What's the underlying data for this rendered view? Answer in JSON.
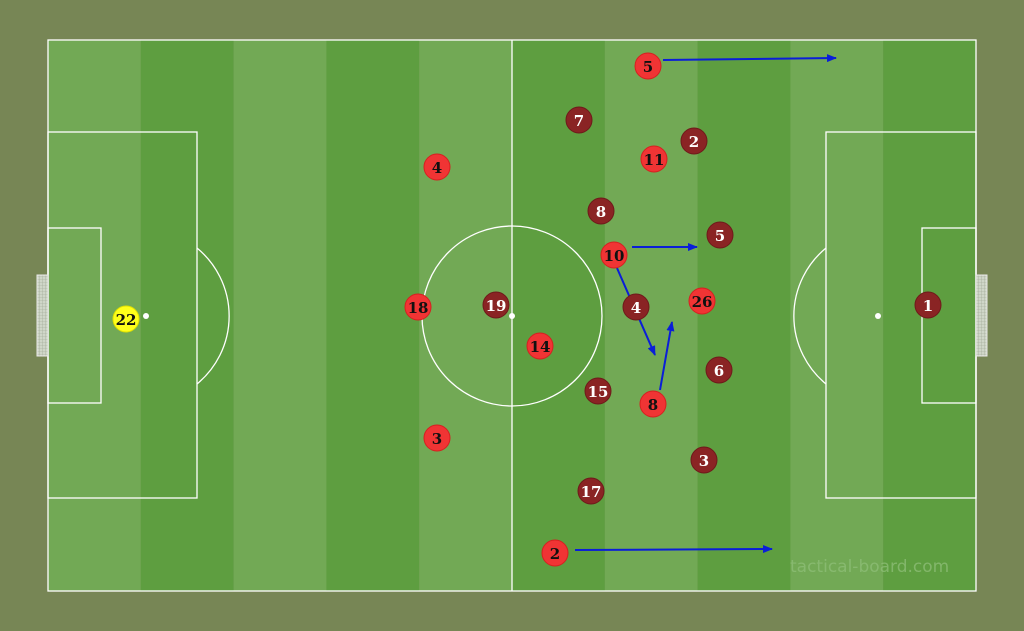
{
  "watermark": "tactical-board.com",
  "colors": {
    "background": "#778655",
    "pitch_light": "#72a955",
    "pitch_dark": "#5e9e40",
    "lines": "#ffffff",
    "team_red": "#f03434",
    "team_dark": "#8a2424",
    "goalkeeper": "#ffff1a",
    "arrows": "#0a1ed8"
  },
  "players": [
    {
      "number": "5",
      "team": "red"
    },
    {
      "number": "4",
      "team": "red"
    },
    {
      "number": "11",
      "team": "red"
    },
    {
      "number": "10",
      "team": "red"
    },
    {
      "number": "18",
      "team": "red"
    },
    {
      "number": "26",
      "team": "red"
    },
    {
      "number": "14",
      "team": "red"
    },
    {
      "number": "8",
      "team": "red"
    },
    {
      "number": "3",
      "team": "red"
    },
    {
      "number": "2",
      "team": "red"
    },
    {
      "number": "7",
      "team": "dark"
    },
    {
      "number": "2",
      "team": "dark"
    },
    {
      "number": "8",
      "team": "dark"
    },
    {
      "number": "5",
      "team": "dark"
    },
    {
      "number": "19",
      "team": "dark"
    },
    {
      "number": "4",
      "team": "dark"
    },
    {
      "number": "15",
      "team": "dark"
    },
    {
      "number": "6",
      "team": "dark"
    },
    {
      "number": "3",
      "team": "dark"
    },
    {
      "number": "17",
      "team": "dark"
    },
    {
      "number": "1",
      "team": "dark"
    },
    {
      "number": "22",
      "team": "goalkeeper"
    }
  ]
}
